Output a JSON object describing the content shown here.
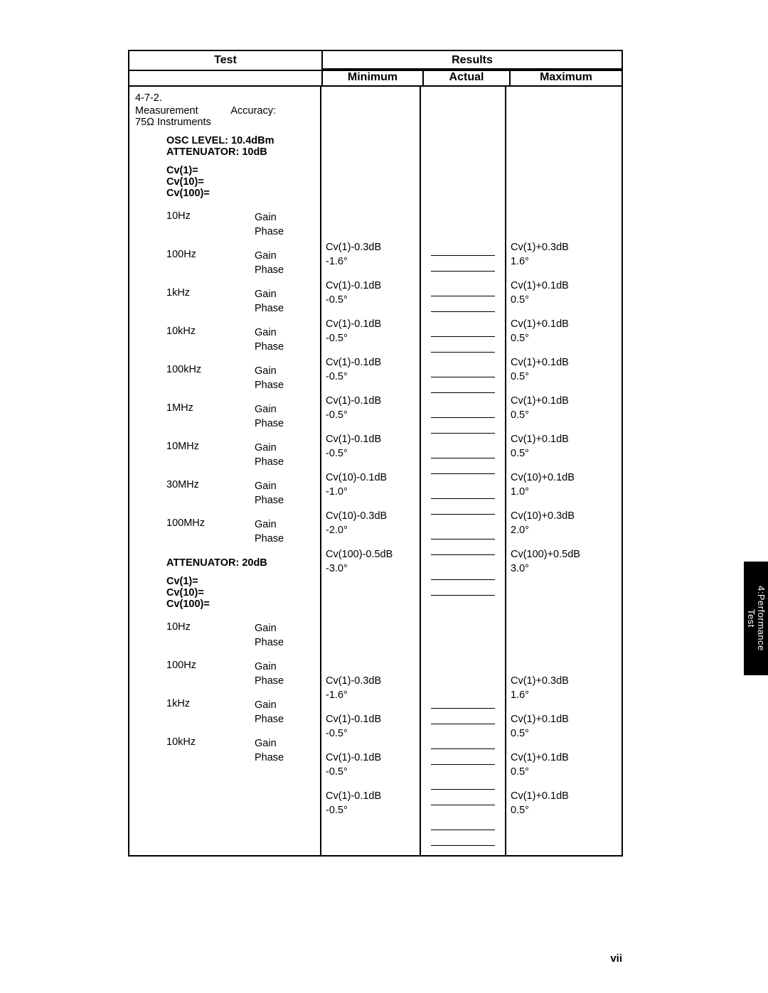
{
  "headers": {
    "test": "Test",
    "results": "Results",
    "minimum": "Minimum",
    "actual": "Actual",
    "maximum": "Maximum"
  },
  "section": {
    "number": "4-7-2.",
    "title_l1a": "Measurement",
    "title_l1b": "Accuracy:",
    "title_l2": "75Ω Instruments",
    "osc": "OSC LEVEL: 10.4dBm",
    "atten1": "ATTENUATOR: 10dB",
    "atten2": "ATTENUATOR: 20dB",
    "cv1": "Cv(1)=",
    "cv10": "Cv(10)=",
    "cv100": "Cv(100)="
  },
  "gp": {
    "gain": "Gain",
    "phase": "Phase"
  },
  "freqs1": [
    "10Hz",
    "100Hz",
    "1kHz",
    "10kHz",
    "100kHz",
    "1MHz",
    "10MHz",
    "30MHz",
    "100MHz"
  ],
  "freqs2": [
    "10Hz",
    "100Hz",
    "1kHz",
    "10kHz"
  ],
  "mins1": [
    {
      "g": "Cv(1)-0.3dB",
      "p": "-1.6°"
    },
    {
      "g": "Cv(1)-0.1dB",
      "p": "-0.5°"
    },
    {
      "g": "Cv(1)-0.1dB",
      "p": "-0.5°"
    },
    {
      "g": "Cv(1)-0.1dB",
      "p": "-0.5°"
    },
    {
      "g": "Cv(1)-0.1dB",
      "p": "-0.5°"
    },
    {
      "g": "Cv(1)-0.1dB",
      "p": "-0.5°"
    },
    {
      "g": "Cv(10)-0.1dB",
      "p": "-1.0°"
    },
    {
      "g": "Cv(10)-0.3dB",
      "p": "-2.0°"
    },
    {
      "g": "Cv(100)-0.5dB",
      "p": "-3.0°"
    }
  ],
  "maxs1": [
    {
      "g": "Cv(1)+0.3dB",
      "p": "1.6°"
    },
    {
      "g": "Cv(1)+0.1dB",
      "p": "0.5°"
    },
    {
      "g": "Cv(1)+0.1dB",
      "p": "0.5°"
    },
    {
      "g": "Cv(1)+0.1dB",
      "p": "0.5°"
    },
    {
      "g": "Cv(1)+0.1dB",
      "p": "0.5°"
    },
    {
      "g": "Cv(1)+0.1dB",
      "p": "0.5°"
    },
    {
      "g": "Cv(10)+0.1dB",
      "p": "1.0°"
    },
    {
      "g": "Cv(10)+0.3dB",
      "p": "2.0°"
    },
    {
      "g": "Cv(100)+0.5dB",
      "p": "3.0°"
    }
  ],
  "mins2": [
    {
      "g": "Cv(1)-0.3dB",
      "p": "-1.6°"
    },
    {
      "g": "Cv(1)-0.1dB",
      "p": "-0.5°"
    },
    {
      "g": "Cv(1)-0.1dB",
      "p": "-0.5°"
    },
    {
      "g": "Cv(1)-0.1dB",
      "p": "-0.5°"
    }
  ],
  "maxs2": [
    {
      "g": "Cv(1)+0.3dB",
      "p": "1.6°"
    },
    {
      "g": "Cv(1)+0.1dB",
      "p": "0.5°"
    },
    {
      "g": "Cv(1)+0.1dB",
      "p": "0.5°"
    },
    {
      "g": "Cv(1)+0.1dB",
      "p": "0.5°"
    }
  ],
  "sidetab": {
    "l1": "4:Performance",
    "l2": "Test"
  },
  "pageno": "vii"
}
